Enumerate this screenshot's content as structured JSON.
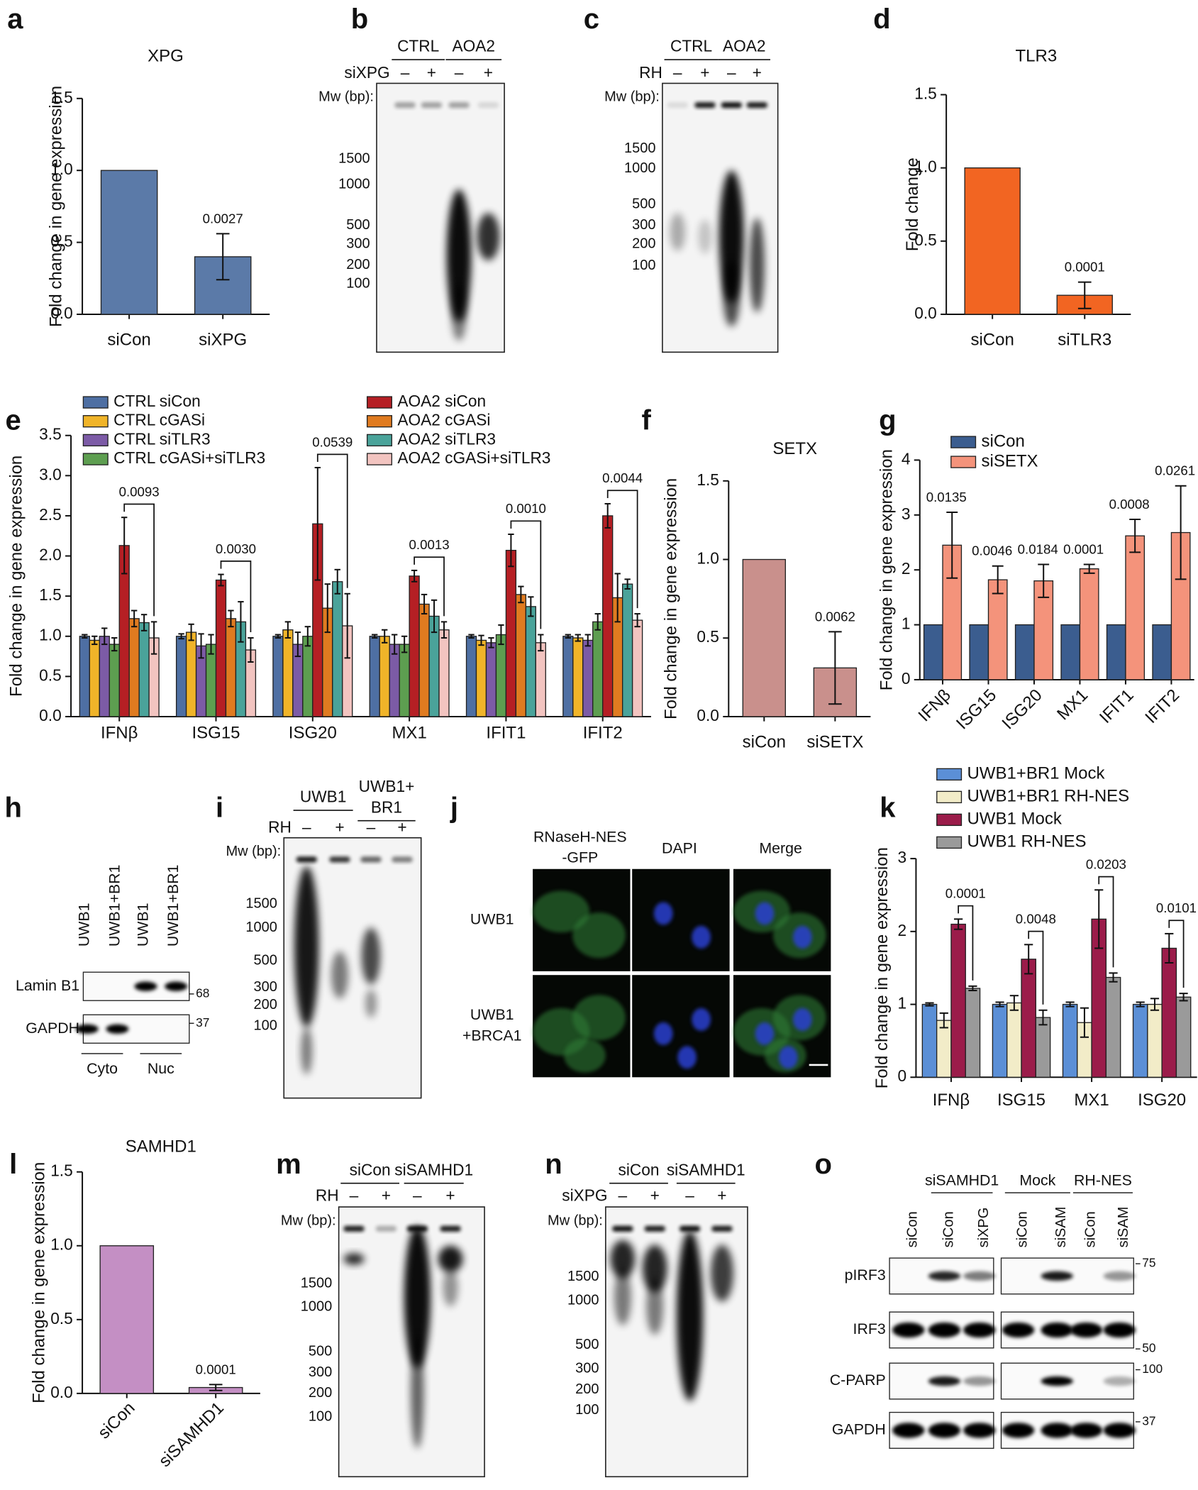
{
  "panel_letters": [
    "a",
    "b",
    "c",
    "d",
    "e",
    "f",
    "g",
    "h",
    "i",
    "j",
    "k",
    "l",
    "m",
    "n",
    "o"
  ],
  "chart_data": [
    {
      "type": "bar",
      "title": "XPG",
      "y_label": "Fold change in gene expression",
      "categories": [
        "siCon",
        "siXPG"
      ],
      "values": [
        1.0,
        0.4
      ],
      "errors": [
        0,
        0.16
      ],
      "pvalues": [
        null,
        "0.0027"
      ],
      "color": "#5b7aa8",
      "ylim": [
        0,
        1.5
      ],
      "yticks": [
        {
          "value": 0,
          "label": "0.0"
        },
        0.5,
        {
          "value": 1,
          "label": "1.0"
        },
        1.5
      ]
    },
    {
      "type": "bar",
      "title": "TLR3",
      "y_label": "Fold change",
      "categories": [
        "siCon",
        "siTLR3"
      ],
      "values": [
        1.0,
        0.13
      ],
      "errors": [
        0,
        0.09
      ],
      "pvalues": [
        null,
        "0.0001"
      ],
      "color": "#f26522",
      "ylim": [
        0,
        1.5
      ],
      "yticks": [
        {
          "value": 0,
          "label": "0.0"
        },
        0.5,
        {
          "value": 1,
          "label": "1.0"
        },
        1.5
      ]
    },
    {
      "type": "bar",
      "y_label": "Fold change in gene expression",
      "categories": [
        "IFNβ",
        "ISG15",
        "ISG20",
        "MX1",
        "IFIT1",
        "IFIT2"
      ],
      "pvalues": [
        "0.0093",
        "0.0030",
        "0.0539",
        "0.0013",
        "0.0010",
        "0.0044"
      ],
      "series": [
        {
          "name": "CTRL siCon",
          "color": "#4e6fa3",
          "values": [
            1,
            1,
            1,
            1,
            1,
            1
          ],
          "errors": [
            0.02,
            0.03,
            0.02,
            0.02,
            0.02,
            0.02
          ]
        },
        {
          "name": "CTRL cGASi",
          "color": "#f0b429",
          "values": [
            0.95,
            1.05,
            1.08,
            1.0,
            0.95,
            0.98
          ],
          "errors": [
            0.05,
            0.1,
            0.1,
            0.08,
            0.06,
            0.04
          ]
        },
        {
          "name": "CTRL siTLR3",
          "color": "#7c5ba6",
          "values": [
            1.0,
            0.88,
            0.9,
            0.9,
            0.92,
            0.95
          ],
          "errors": [
            0.1,
            0.15,
            0.15,
            0.12,
            0.06,
            0.07
          ]
        },
        {
          "name": "CTRL cGASi+siTLR3",
          "color": "#5d9e50",
          "values": [
            0.9,
            0.9,
            1.0,
            0.9,
            1.02,
            1.18
          ],
          "errors": [
            0.08,
            0.12,
            0.12,
            0.1,
            0.12,
            0.1
          ]
        },
        {
          "name": "AOA2 siCon",
          "color": "#b51f24",
          "values": [
            2.13,
            1.7,
            2.4,
            1.75,
            2.07,
            2.5
          ],
          "errors": [
            0.35,
            0.07,
            0.7,
            0.07,
            0.2,
            0.15
          ]
        },
        {
          "name": "AOA2 cGASi",
          "color": "#e07b20",
          "values": [
            1.22,
            1.22,
            1.35,
            1.4,
            1.52,
            1.48
          ],
          "errors": [
            0.1,
            0.1,
            0.3,
            0.12,
            0.1,
            0.3
          ]
        },
        {
          "name": "AOA2 siTLR3",
          "color": "#4aa39a",
          "values": [
            1.17,
            1.18,
            1.68,
            1.25,
            1.37,
            1.65
          ],
          "errors": [
            0.1,
            0.25,
            0.15,
            0.2,
            0.12,
            0.06
          ]
        },
        {
          "name": "AOA2 cGASi+siTLR3",
          "color": "#f2c4c0",
          "values": [
            0.98,
            0.83,
            1.13,
            1.08,
            0.92,
            1.2
          ],
          "errors": [
            0.2,
            0.15,
            0.4,
            0.1,
            0.1,
            0.08
          ]
        }
      ],
      "ylim": [
        0,
        3.5
      ],
      "yticks": [
        {
          "value": 0,
          "label": "0.0"
        },
        0.5,
        {
          "value": 1,
          "label": "1.0"
        },
        1.5,
        {
          "value": 2,
          "label": "2.0"
        },
        2.5,
        {
          "value": 3,
          "label": "3.0"
        },
        3.5
      ]
    },
    {
      "type": "bar",
      "title": "SETX",
      "y_label": "Fold change in gene expression",
      "categories": [
        "siCon",
        "siSETX"
      ],
      "values": [
        1.0,
        0.31
      ],
      "errors": [
        0,
        0.23
      ],
      "pvalues": [
        null,
        "0.0062"
      ],
      "color": "#c9908c",
      "ylim": [
        0,
        1.5
      ],
      "yticks": [
        {
          "value": 0,
          "label": "0.0"
        },
        0.5,
        {
          "value": 1,
          "label": "1.0"
        },
        1.5
      ]
    },
    {
      "type": "bar",
      "y_label": "Fold change in gene expression",
      "categories": [
        "IFNβ",
        "ISG15",
        "ISG20",
        "MX1",
        "IFIT1",
        "IFIT2"
      ],
      "pvalues": [
        "0.0135",
        "0.0046",
        "0.0184",
        "0.0001",
        "0.0008",
        "0.0261"
      ],
      "series": [
        {
          "name": "siCon",
          "color": "#3b5d8f",
          "values": [
            1,
            1,
            1,
            1,
            1,
            1
          ],
          "errors": [
            0,
            0,
            0,
            0,
            0,
            0
          ]
        },
        {
          "name": "siSETX",
          "color": "#f4937b",
          "values": [
            2.45,
            1.82,
            1.8,
            2.02,
            2.62,
            2.68
          ],
          "errors": [
            0.6,
            0.25,
            0.3,
            0.08,
            0.3,
            0.85
          ]
        }
      ],
      "ylim": [
        0,
        4
      ],
      "yticks": [
        0,
        1,
        2,
        3,
        4
      ]
    },
    {
      "type": "bar",
      "y_label": "Fold change in gene expression",
      "categories": [
        "IFNβ",
        "ISG15",
        "MX1",
        "ISG20"
      ],
      "pvalues": [
        "0.0001",
        "0.0048",
        "0.0203",
        "0.0101"
      ],
      "series": [
        {
          "name": "UWB1+BR1 Mock",
          "color": "#5b8fd6",
          "values": [
            1,
            1,
            1,
            1
          ],
          "errors": [
            0.02,
            0.03,
            0.03,
            0.03
          ]
        },
        {
          "name": "UWB1+BR1 RH-NES",
          "color": "#f2ecc8",
          "values": [
            0.78,
            1.02,
            0.75,
            1.0
          ],
          "errors": [
            0.1,
            0.1,
            0.2,
            0.08
          ]
        },
        {
          "name": "UWB1 Mock",
          "color": "#9b1c4a",
          "values": [
            2.1,
            1.62,
            2.17,
            1.77
          ],
          "errors": [
            0.07,
            0.2,
            0.4,
            0.2
          ]
        },
        {
          "name": "UWB1 RH-NES",
          "color": "#9a9a9a",
          "values": [
            1.22,
            0.82,
            1.37,
            1.1
          ],
          "errors": [
            0.03,
            0.1,
            0.06,
            0.05
          ]
        }
      ],
      "ylim": [
        0,
        3
      ],
      "yticks": [
        0,
        1,
        2,
        3
      ]
    },
    {
      "type": "bar",
      "title": "SAMHD1",
      "y_label": "Fold change in gene expression",
      "categories": [
        "siCon",
        "siSAMHD1"
      ],
      "values": [
        1.0,
        0.04
      ],
      "errors": [
        0,
        0.02
      ],
      "pvalues": [
        null,
        "0.0001"
      ],
      "color": "#c48fc4",
      "ylim": [
        0,
        1.5
      ],
      "yticks": [
        {
          "value": 0,
          "label": "0.0"
        },
        0.5,
        {
          "value": 1,
          "label": "1.0"
        },
        1.5
      ]
    }
  ],
  "blots": [
    {
      "groups": [
        [
          "CTRL"
        ],
        [
          "AOA2"
        ]
      ],
      "treatment": "siXPG",
      "signs": [
        "–",
        "+",
        "–",
        "+"
      ],
      "mw_label": "Mw (bp):",
      "markers": [
        "1500",
        "1000",
        "500",
        "300",
        "200",
        "100"
      ]
    },
    {
      "groups": [
        [
          "CTRL"
        ],
        [
          "AOA2"
        ]
      ],
      "treatment": "RH",
      "signs": [
        "–",
        "+",
        "–",
        "+"
      ],
      "mw_label": "Mw (bp):",
      "markers": [
        "1500",
        "1000",
        "500",
        "300",
        "200",
        "100"
      ]
    },
    {
      "groups": [
        [
          "UWB1"
        ],
        [
          "UWB1+",
          "BR1"
        ]
      ],
      "treatment": "RH",
      "signs": [
        "–",
        "+",
        "–",
        "+"
      ],
      "mw_label": "Mw (bp):",
      "markers": [
        "1500",
        "1000",
        "500",
        "300",
        "200",
        "100"
      ]
    },
    {
      "groups": [
        [
          "siCon"
        ],
        [
          "siSAMHD1"
        ]
      ],
      "treatment": "RH",
      "signs": [
        "–",
        "+",
        "–",
        "+"
      ],
      "mw_label": "Mw (bp):",
      "markers": [
        "1500",
        "1000",
        "500",
        "300",
        "200",
        "100"
      ]
    },
    {
      "groups": [
        [
          "siCon"
        ],
        [
          "siSAMHD1"
        ]
      ],
      "treatment": "siXPG",
      "signs": [
        "–",
        "+",
        "–",
        "+"
      ],
      "mw_label": "Mw (bp):",
      "markers": [
        "1500",
        "1000",
        "500",
        "300",
        "200",
        "100"
      ]
    }
  ],
  "western_h": {
    "lanes": [
      "UWB1",
      "UWB1+BR1",
      "UWB1",
      "UWB1+BR1"
    ],
    "rows": [
      "Lamin B1",
      "GAPDH"
    ],
    "mw": [
      "68",
      "37"
    ],
    "fractions": [
      "Cyto",
      "Nuc"
    ]
  },
  "western_o": {
    "groups": [
      "siSAMHD1",
      "Mock",
      "RH-NES"
    ],
    "lanes": [
      "siCon",
      "siCon",
      "siXPG",
      "siCon",
      "siSAM",
      "siCon",
      "siSAM"
    ],
    "rows": [
      "pIRF3",
      "IRF3",
      "C-PARP",
      "GAPDH"
    ],
    "mw": [
      "75",
      "50",
      "100",
      "37"
    ]
  },
  "microscopy_j": {
    "columns": [
      [
        "RNaseH-NES",
        "-GFP"
      ],
      [
        "DAPI"
      ],
      [
        "Merge"
      ]
    ],
    "rows": [
      [
        "UWB1"
      ],
      [
        "UWB1",
        "+BRCA1"
      ]
    ]
  }
}
